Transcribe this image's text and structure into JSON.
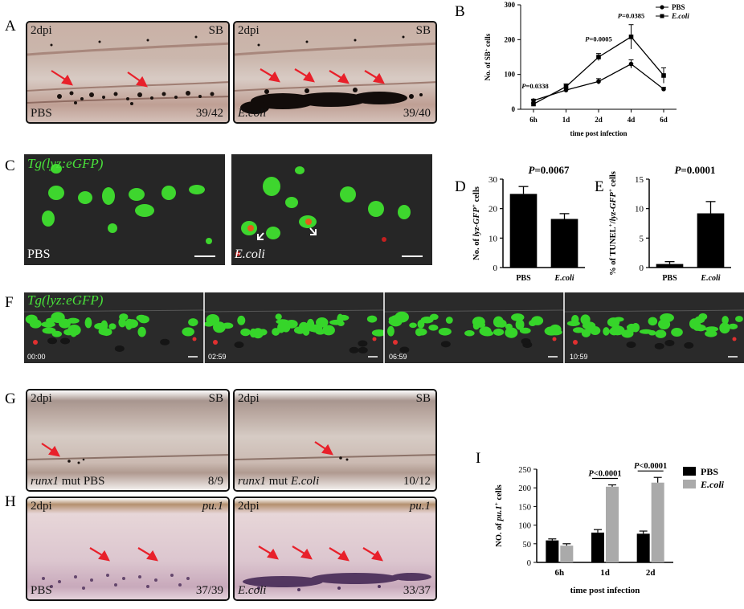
{
  "panels": {
    "A": {
      "label": "A",
      "left": {
        "dpi": "2dpi",
        "stain": "SB",
        "cond": "PBS",
        "ratio": "39/42"
      },
      "right": {
        "dpi": "2dpi",
        "stain": "SB",
        "cond": "E.coli",
        "ratio": "39/40"
      }
    },
    "C": {
      "label": "C",
      "left": {
        "transgene": "Tg(lyz:eGFP)",
        "cond": "PBS"
      },
      "right": {
        "cond": "E.coli"
      }
    },
    "F": {
      "label": "F",
      "transgene": "Tg(lyz:eGFP)",
      "times": [
        "00:00",
        "02:59",
        "06:59",
        "10:59"
      ]
    },
    "G": {
      "label": "G",
      "left": {
        "dpi": "2dpi",
        "stain": "SB",
        "gene": "runx1",
        "cond": " mut PBS",
        "ratio": "8/9"
      },
      "right": {
        "dpi": "2dpi",
        "stain": "SB",
        "gene": "runx1",
        "cond": " mut ",
        "cond2": "E.coli",
        "ratio": "10/12"
      }
    },
    "H": {
      "label": "H",
      "left": {
        "dpi": "2dpi",
        "stain": "pu.1",
        "cond": "PBS",
        "ratio": "37/39"
      },
      "right": {
        "dpi": "2dpi",
        "stain": "pu.1",
        "cond": "E.coli",
        "ratio": "33/37"
      }
    }
  },
  "chart_data": [
    {
      "id": "B",
      "type": "line",
      "label": "B",
      "x": [
        "6h",
        "1d",
        "2d",
        "4d",
        "6d"
      ],
      "xlabel": "time post infection",
      "ylabel": "No. of SB+ cells",
      "ylim": [
        0,
        300
      ],
      "yticks": [
        0,
        100,
        200,
        300
      ],
      "legend": "top-right",
      "series": [
        {
          "name": "PBS",
          "marker": "circle",
          "values": [
            25,
            55,
            80,
            130,
            58
          ],
          "err": [
            4,
            6,
            8,
            12,
            5
          ]
        },
        {
          "name": "E.coli",
          "marker": "square",
          "values": [
            15,
            65,
            150,
            208,
            97
          ],
          "err": [
            3,
            8,
            10,
            35,
            22
          ]
        }
      ],
      "annotations": [
        {
          "x": "6h",
          "text": "P=0.0338"
        },
        {
          "x": "2d",
          "text": "P=0.0005"
        },
        {
          "x": "4d",
          "text": "P=0.0385"
        }
      ]
    },
    {
      "id": "D",
      "type": "bar",
      "label": "D",
      "categories": [
        "PBS",
        "E.coli"
      ],
      "values": [
        25,
        16.5
      ],
      "err": [
        2.5,
        1.8
      ],
      "ylabel": "No. of lyz-GFP+ cells",
      "ylim": [
        0,
        30
      ],
      "yticks": [
        0,
        10,
        20,
        30
      ],
      "annotation": "P=0.0067"
    },
    {
      "id": "E",
      "type": "bar",
      "label": "E",
      "categories": [
        "PBS",
        "E.coli"
      ],
      "values": [
        0.6,
        9.2
      ],
      "err": [
        0.4,
        2.0
      ],
      "ylabel": "% of TUNEL+/lyz-GFP+ cells",
      "ylim": [
        0,
        15
      ],
      "yticks": [
        0,
        5,
        10,
        15
      ],
      "annotation": "P=0.0001"
    },
    {
      "id": "I",
      "type": "bar",
      "label": "I",
      "categories": [
        "6h",
        "1d",
        "2d"
      ],
      "series": [
        {
          "name": "PBS",
          "color": "#000000",
          "values": [
            59,
            80,
            77
          ],
          "err": [
            4,
            8,
            7
          ]
        },
        {
          "name": "E.coli",
          "color": "#aaaaaa",
          "values": [
            45,
            203,
            214
          ],
          "err": [
            5,
            5,
            14
          ]
        }
      ],
      "xlabel": "time post infection",
      "ylabel": "NO. of pu.1+ cells",
      "ylim": [
        0,
        250
      ],
      "yticks": [
        0,
        50,
        100,
        150,
        200,
        250
      ],
      "legend": "top-right",
      "annotations": [
        {
          "x": "1d",
          "text": "P<0.0001"
        },
        {
          "x": "2d",
          "text": "P<0.0001"
        }
      ]
    }
  ]
}
